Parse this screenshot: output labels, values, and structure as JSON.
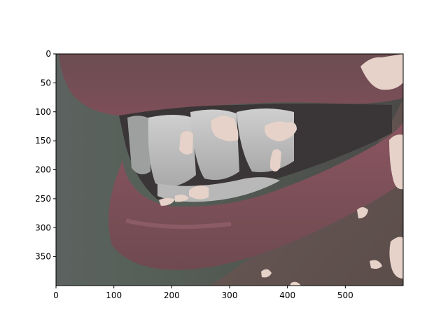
{
  "chart_data": {
    "type": "image",
    "title": "",
    "xlabel": "",
    "ylabel": "",
    "xlim": [
      0,
      600
    ],
    "ylim": [
      400,
      0
    ],
    "xticks": [
      "0",
      "100",
      "200",
      "300",
      "400",
      "500"
    ],
    "yticks": [
      "0",
      "50",
      "100",
      "150",
      "200",
      "250",
      "300",
      "350"
    ],
    "image_subject": "close-up side view of mouth with lips and teeth",
    "overlay_color": "#e6d2c8"
  },
  "colors": {
    "background": "#5b5f5d",
    "lip": "#7a4a52",
    "teeth": "#cfcfcf",
    "skin": "#6f5f5c",
    "overlay": "#e6d2c8"
  }
}
